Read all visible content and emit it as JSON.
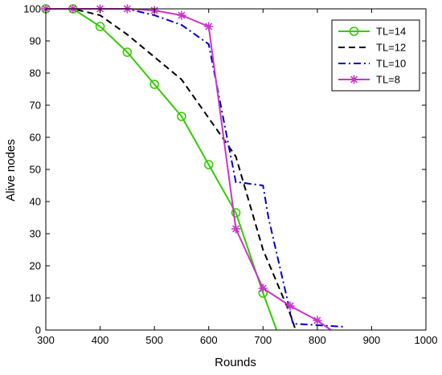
{
  "chart_data": {
    "type": "line",
    "title": "",
    "xlabel": "Rounds",
    "ylabel": "Alive nodes",
    "xlim": [
      300,
      1000
    ],
    "ylim": [
      0,
      100
    ],
    "xticks": [
      300,
      400,
      500,
      600,
      700,
      800,
      900,
      1000
    ],
    "yticks": [
      0,
      10,
      20,
      30,
      40,
      50,
      60,
      70,
      80,
      90,
      100
    ],
    "grid": false,
    "legend_position": "top-right",
    "series": [
      {
        "name": "TL=14",
        "color": "#33cc00",
        "line_style": "solid",
        "marker": "circle",
        "x": [
          300,
          350,
          400,
          450,
          500,
          550,
          600,
          650,
          700,
          725
        ],
        "y": [
          100,
          100,
          94.5,
          86.5,
          76.5,
          66.5,
          51.5,
          36.5,
          11.5,
          0
        ],
        "marker_x": [
          300,
          350,
          400,
          450,
          500,
          550,
          600,
          650,
          700
        ],
        "marker_y": [
          100,
          100,
          94.5,
          86.5,
          76.5,
          66.5,
          51.5,
          36.5,
          11.5
        ]
      },
      {
        "name": "TL=12",
        "color": "#000000",
        "line_style": "dashed",
        "marker": "none",
        "x": [
          300,
          350,
          400,
          450,
          500,
          550,
          600,
          650,
          700,
          750,
          760
        ],
        "y": [
          100,
          100,
          98,
          92,
          85,
          78,
          66,
          54,
          25,
          5,
          0
        ]
      },
      {
        "name": "TL=10",
        "color": "#0000cc",
        "line_style": "dashdot",
        "marker": "none",
        "x": [
          300,
          350,
          400,
          450,
          500,
          550,
          600,
          650,
          655,
          700,
          710,
          755,
          850
        ],
        "y": [
          100,
          100,
          100,
          100,
          98,
          95,
          89,
          46,
          46,
          45,
          35,
          2,
          1
        ]
      },
      {
        "name": "TL=8",
        "color": "#cc33cc",
        "line_style": "solid",
        "marker": "asterisk",
        "x": [
          300,
          350,
          400,
          450,
          500,
          550,
          600,
          650,
          700,
          750,
          800,
          825
        ],
        "y": [
          100,
          100,
          100,
          100,
          99.5,
          98,
          94.5,
          31.5,
          13,
          7.5,
          3,
          0
        ],
        "marker_x": [
          300,
          350,
          400,
          450,
          500,
          550,
          600,
          650,
          700,
          750,
          800
        ],
        "marker_y": [
          100,
          100,
          100,
          100,
          99.5,
          98,
          94.5,
          31.5,
          13,
          7.5,
          3
        ]
      }
    ]
  }
}
